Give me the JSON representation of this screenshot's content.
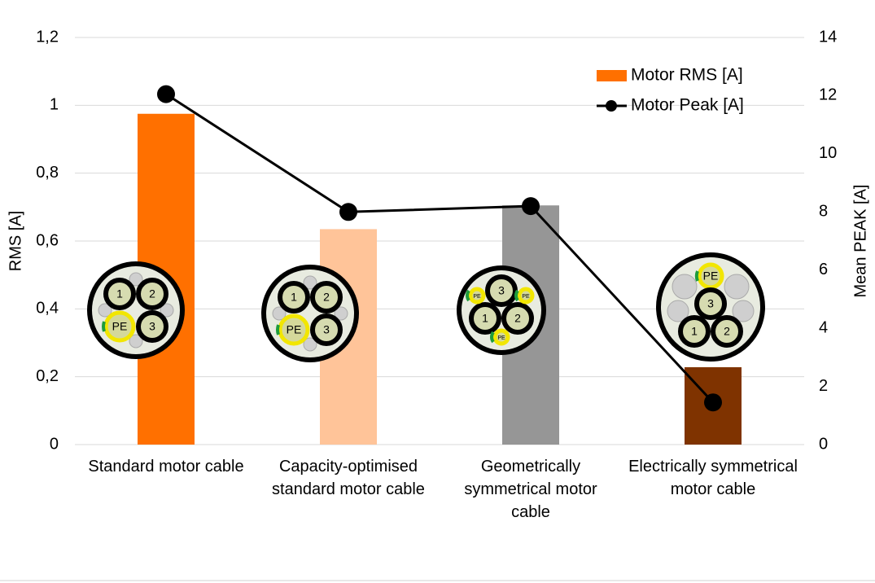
{
  "chart_data": {
    "type": "bar-line",
    "categories": [
      "Standard motor cable",
      "Capacity-optimised standard motor cable",
      "Geometrically symmetrical motor cable",
      "Electrically symmetrical motor cable"
    ],
    "series": [
      {
        "name": "Motor RMS [A]",
        "type": "bar",
        "color": "#ff7000",
        "colors": [
          "#ff7000",
          "#ffc499",
          "#969696",
          "#7f3300"
        ],
        "values": [
          0.975,
          0.635,
          0.705,
          0.228
        ]
      },
      {
        "name": "Motor Peak [A]",
        "type": "line",
        "axis": "y2",
        "color": "#000000",
        "values": [
          12.05,
          8.0,
          8.2,
          1.45
        ]
      }
    ],
    "ylabel": "RMS [A]",
    "y2label": "Mean PEAK [A]",
    "ylim": [
      0,
      1.2
    ],
    "yticks": [
      0,
      {
        "value": 0.2,
        "label": "0,2"
      },
      {
        "value": 0.4,
        "label": "0,4"
      },
      {
        "value": 0.6,
        "label": "0,6"
      },
      {
        "value": 0.8,
        "label": "0,8"
      },
      1,
      {
        "value": 1.2,
        "label": "1,2"
      }
    ],
    "y2lim": [
      0,
      14
    ],
    "y2ticks": [
      0,
      2,
      4,
      6,
      8,
      10,
      12,
      14
    ],
    "grid": true,
    "legend": "top-right"
  },
  "conductor_labels": [
    "1",
    "2",
    "3",
    "PE"
  ]
}
